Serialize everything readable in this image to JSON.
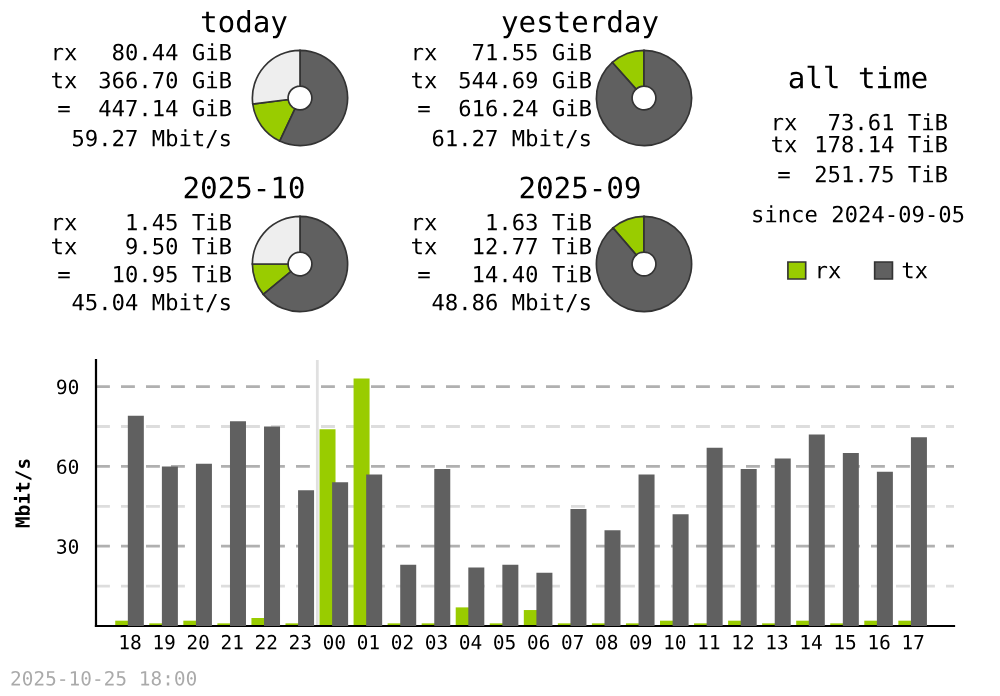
{
  "chart_data": [
    {
      "type": "donut",
      "title": "today",
      "categories": [
        null,
        null,
        null
      ],
      "values": [
        16,
        57,
        27
      ],
      "colors": [
        "#99cc00",
        "#606060",
        "#eeeeee"
      ],
      "annotations": [
        "rx 80.44 GiB",
        "tx 366.70 GiB",
        "= 447.14 GiB",
        "59.27 Mbit/s"
      ]
    },
    {
      "type": "donut",
      "title": "yesterday",
      "categories": [
        null,
        null
      ],
      "values": [
        11.6,
        88.4
      ],
      "colors": [
        "#99cc00",
        "#606060"
      ],
      "annotations": [
        "rx 71.55 GiB",
        "tx 544.69 GiB",
        "= 616.24 GiB",
        "61.27 Mbit/s"
      ]
    },
    {
      "type": "other",
      "title": "all time",
      "annotations": [
        "rx 73.61 TiB",
        "tx 178.14 TiB",
        "= 251.75 TiB",
        "since 2024-09-05"
      ]
    },
    {
      "type": "donut",
      "title": "2025-10",
      "categories": [
        null,
        null,
        null
      ],
      "values": [
        11,
        64,
        25
      ],
      "colors": [
        "#99cc00",
        "#606060",
        "#eeeeee"
      ],
      "annotations": [
        "rx 1.45 TiB",
        "tx 9.50 TiB",
        "= 10.95 TiB",
        "45.04 Mbit/s"
      ]
    },
    {
      "type": "donut",
      "title": "2025-09",
      "categories": [
        null,
        null
      ],
      "values": [
        11.3,
        88.7
      ],
      "colors": [
        "#99cc00",
        "#606060"
      ],
      "annotations": [
        "rx 1.63 TiB",
        "tx 12.77 TiB",
        "= 14.40 TiB",
        "48.86 Mbit/s"
      ]
    },
    {
      "type": "bar",
      "ylabel": "Mbit/s",
      "legend": "top right",
      "grid": "y",
      "categories": [
        "18",
        "19",
        "20",
        "21",
        "22",
        "23",
        "00",
        "01",
        "02",
        "03",
        "04",
        "05",
        "06",
        "07",
        "08",
        "09",
        "10",
        "11",
        "12",
        "13",
        "14",
        "15",
        "16",
        "17"
      ],
      "ylim": [
        0,
        100
      ],
      "yticks": [
        {
          "value": 15,
          "label": null
        },
        30,
        {
          "value": 45,
          "label": null
        },
        60,
        {
          "value": 75,
          "label": null
        },
        90
      ],
      "ref_lines": [
        {
          "axis": "x",
          "value": "00",
          "label": null,
          "color": "#e0e0e0"
        }
      ],
      "annotations": [
        "2025-10-25 18:00"
      ],
      "series": [
        {
          "name": "rx",
          "color": "#99cc00",
          "values": [
            2,
            1,
            2,
            1,
            3,
            1,
            74,
            93,
            1,
            1,
            7,
            1,
            6,
            1,
            1,
            1,
            2,
            1,
            2,
            1,
            2,
            1,
            2,
            2
          ]
        },
        {
          "name": "tx",
          "color": "#606060",
          "values": [
            79,
            60,
            61,
            77,
            75,
            51,
            54,
            57,
            23,
            59,
            22,
            23,
            20,
            44,
            36,
            57,
            42,
            67,
            59,
            63,
            72,
            65,
            58,
            71
          ]
        }
      ]
    }
  ]
}
